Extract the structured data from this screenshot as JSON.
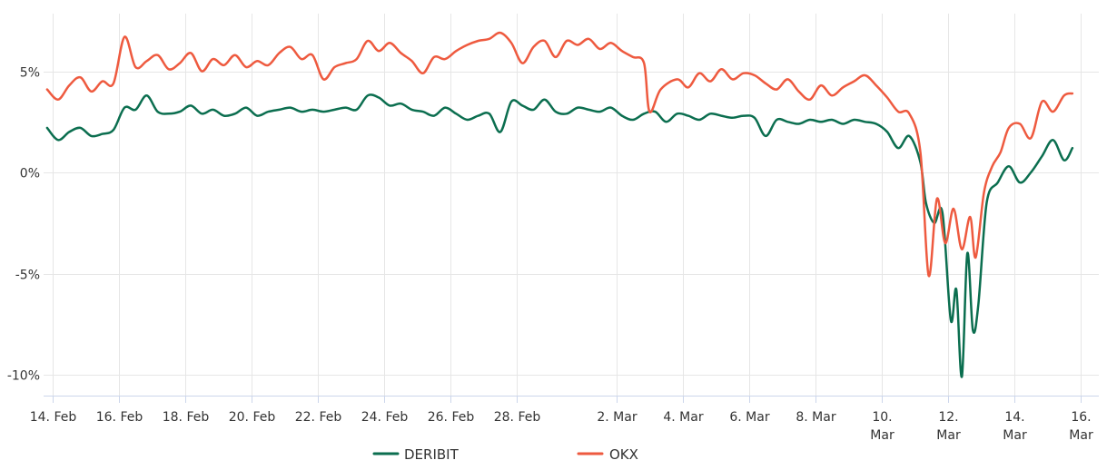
{
  "chart_data": {
    "type": "line",
    "title": "",
    "xlabel": "",
    "ylabel": "",
    "x_range": [
      "2020-02-14",
      "2020-03-16"
    ],
    "ylim": [
      -11,
      7.5
    ],
    "grid": true,
    "legend_placement": "bottom-center",
    "y_ticks": [
      {
        "value": 5,
        "label": "5%"
      },
      {
        "value": 0,
        "label": "0%"
      },
      {
        "value": -5,
        "label": "-5%"
      },
      {
        "value": -10,
        "label": "-10%"
      }
    ],
    "x_ticks": [
      {
        "date": "2020-02-14",
        "lines": [
          "14. Feb"
        ]
      },
      {
        "date": "2020-02-16",
        "lines": [
          "16. Feb"
        ]
      },
      {
        "date": "2020-02-18",
        "lines": [
          "18. Feb"
        ]
      },
      {
        "date": "2020-02-20",
        "lines": [
          "20. Feb"
        ]
      },
      {
        "date": "2020-02-22",
        "lines": [
          "22. Feb"
        ]
      },
      {
        "date": "2020-02-24",
        "lines": [
          "24. Feb"
        ]
      },
      {
        "date": "2020-02-26",
        "lines": [
          "26. Feb"
        ]
      },
      {
        "date": "2020-02-28",
        "lines": [
          "28. Feb"
        ]
      },
      {
        "date": "2020-03-02",
        "lines": [
          "2. Mar"
        ]
      },
      {
        "date": "2020-03-04",
        "lines": [
          "4. Mar"
        ]
      },
      {
        "date": "2020-03-06",
        "lines": [
          "6. Mar"
        ]
      },
      {
        "date": "2020-03-08",
        "lines": [
          "8. Mar"
        ]
      },
      {
        "date": "2020-03-10",
        "lines": [
          "10.",
          "Mar"
        ]
      },
      {
        "date": "2020-03-12",
        "lines": [
          "12.",
          "Mar"
        ]
      },
      {
        "date": "2020-03-14",
        "lines": [
          "14.",
          "Mar"
        ]
      },
      {
        "date": "2020-03-16",
        "lines": [
          "16.",
          "Mar"
        ]
      }
    ],
    "series": [
      {
        "name": "DERIBIT",
        "color": "#0b6e4f",
        "points": [
          [
            "2020-02-13 20:00",
            2.2
          ],
          [
            "2020-02-14 04:00",
            1.6
          ],
          [
            "2020-02-14 12:00",
            2.0
          ],
          [
            "2020-02-14 20:00",
            2.2
          ],
          [
            "2020-02-15 04:00",
            1.8
          ],
          [
            "2020-02-15 12:00",
            1.9
          ],
          [
            "2020-02-15 20:00",
            2.1
          ],
          [
            "2020-02-16 04:00",
            3.2
          ],
          [
            "2020-02-16 12:00",
            3.1
          ],
          [
            "2020-02-16 20:00",
            3.8
          ],
          [
            "2020-02-17 04:00",
            3.0
          ],
          [
            "2020-02-17 12:00",
            2.9
          ],
          [
            "2020-02-17 20:00",
            3.0
          ],
          [
            "2020-02-18 04:00",
            3.3
          ],
          [
            "2020-02-18 12:00",
            2.9
          ],
          [
            "2020-02-18 20:00",
            3.1
          ],
          [
            "2020-02-19 04:00",
            2.8
          ],
          [
            "2020-02-19 12:00",
            2.9
          ],
          [
            "2020-02-19 20:00",
            3.2
          ],
          [
            "2020-02-20 04:00",
            2.8
          ],
          [
            "2020-02-20 12:00",
            3.0
          ],
          [
            "2020-02-20 20:00",
            3.1
          ],
          [
            "2020-02-21 04:00",
            3.2
          ],
          [
            "2020-02-21 12:00",
            3.0
          ],
          [
            "2020-02-21 20:00",
            3.1
          ],
          [
            "2020-02-22 04:00",
            3.0
          ],
          [
            "2020-02-22 12:00",
            3.1
          ],
          [
            "2020-02-22 20:00",
            3.2
          ],
          [
            "2020-02-23 04:00",
            3.1
          ],
          [
            "2020-02-23 12:00",
            3.8
          ],
          [
            "2020-02-23 20:00",
            3.7
          ],
          [
            "2020-02-24 04:00",
            3.3
          ],
          [
            "2020-02-24 12:00",
            3.4
          ],
          [
            "2020-02-24 20:00",
            3.1
          ],
          [
            "2020-02-25 04:00",
            3.0
          ],
          [
            "2020-02-25 12:00",
            2.8
          ],
          [
            "2020-02-25 20:00",
            3.2
          ],
          [
            "2020-02-26 04:00",
            2.9
          ],
          [
            "2020-02-26 12:00",
            2.6
          ],
          [
            "2020-02-26 20:00",
            2.8
          ],
          [
            "2020-02-27 04:00",
            2.9
          ],
          [
            "2020-02-27 12:00",
            2.0
          ],
          [
            "2020-02-27 20:00",
            3.5
          ],
          [
            "2020-02-28 04:00",
            3.3
          ],
          [
            "2020-02-28 12:00",
            3.1
          ],
          [
            "2020-02-28 20:00",
            3.6
          ],
          [
            "2020-02-29 04:00",
            3.0
          ],
          [
            "2020-02-29 12:00",
            2.9
          ],
          [
            "2020-02-29 20:00",
            3.2
          ],
          [
            "2020-03-01 04:00",
            3.1
          ],
          [
            "2020-03-01 12:00",
            3.0
          ],
          [
            "2020-03-01 20:00",
            3.2
          ],
          [
            "2020-03-02 04:00",
            2.8
          ],
          [
            "2020-03-02 12:00",
            2.6
          ],
          [
            "2020-03-02 20:00",
            2.9
          ],
          [
            "2020-03-03 04:00",
            3.0
          ],
          [
            "2020-03-03 12:00",
            2.5
          ],
          [
            "2020-03-03 20:00",
            2.9
          ],
          [
            "2020-03-04 04:00",
            2.8
          ],
          [
            "2020-03-04 12:00",
            2.6
          ],
          [
            "2020-03-04 20:00",
            2.9
          ],
          [
            "2020-03-05 04:00",
            2.8
          ],
          [
            "2020-03-05 12:00",
            2.7
          ],
          [
            "2020-03-05 20:00",
            2.8
          ],
          [
            "2020-03-06 04:00",
            2.7
          ],
          [
            "2020-03-06 12:00",
            1.8
          ],
          [
            "2020-03-06 20:00",
            2.6
          ],
          [
            "2020-03-07 04:00",
            2.5
          ],
          [
            "2020-03-07 12:00",
            2.4
          ],
          [
            "2020-03-07 20:00",
            2.6
          ],
          [
            "2020-03-08 04:00",
            2.5
          ],
          [
            "2020-03-08 12:00",
            2.6
          ],
          [
            "2020-03-08 20:00",
            2.4
          ],
          [
            "2020-03-09 04:00",
            2.6
          ],
          [
            "2020-03-09 12:00",
            2.5
          ],
          [
            "2020-03-09 20:00",
            2.4
          ],
          [
            "2020-03-10 04:00",
            2.0
          ],
          [
            "2020-03-10 12:00",
            1.2
          ],
          [
            "2020-03-10 20:00",
            1.8
          ],
          [
            "2020-03-11 04:00",
            0.5
          ],
          [
            "2020-03-11 08:00",
            -1.5
          ],
          [
            "2020-03-11 14:00",
            -2.5
          ],
          [
            "2020-03-11 20:00",
            -2.0
          ],
          [
            "2020-03-12 02:00",
            -7.3
          ],
          [
            "2020-03-12 06:00",
            -5.8
          ],
          [
            "2020-03-12 10:00",
            -10.1
          ],
          [
            "2020-03-12 14:00",
            -4.0
          ],
          [
            "2020-03-12 18:00",
            -7.8
          ],
          [
            "2020-03-12 22:00",
            -6.5
          ],
          [
            "2020-03-13 04:00",
            -1.5
          ],
          [
            "2020-03-13 12:00",
            -0.5
          ],
          [
            "2020-03-13 20:00",
            0.3
          ],
          [
            "2020-03-14 04:00",
            -0.5
          ],
          [
            "2020-03-14 12:00",
            0.0
          ],
          [
            "2020-03-14 20:00",
            0.8
          ],
          [
            "2020-03-15 04:00",
            1.6
          ],
          [
            "2020-03-15 12:00",
            0.6
          ],
          [
            "2020-03-15 18:00",
            1.2
          ]
        ]
      },
      {
        "name": "OKX",
        "color": "#ee5a3f",
        "points": [
          [
            "2020-02-13 20:00",
            4.1
          ],
          [
            "2020-02-14 04:00",
            3.6
          ],
          [
            "2020-02-14 12:00",
            4.3
          ],
          [
            "2020-02-14 20:00",
            4.7
          ],
          [
            "2020-02-15 04:00",
            4.0
          ],
          [
            "2020-02-15 12:00",
            4.5
          ],
          [
            "2020-02-15 20:00",
            4.4
          ],
          [
            "2020-02-16 04:00",
            6.7
          ],
          [
            "2020-02-16 12:00",
            5.2
          ],
          [
            "2020-02-16 20:00",
            5.5
          ],
          [
            "2020-02-17 04:00",
            5.8
          ],
          [
            "2020-02-17 12:00",
            5.1
          ],
          [
            "2020-02-17 20:00",
            5.4
          ],
          [
            "2020-02-18 04:00",
            5.9
          ],
          [
            "2020-02-18 12:00",
            5.0
          ],
          [
            "2020-02-18 20:00",
            5.6
          ],
          [
            "2020-02-19 04:00",
            5.3
          ],
          [
            "2020-02-19 12:00",
            5.8
          ],
          [
            "2020-02-19 20:00",
            5.2
          ],
          [
            "2020-02-20 04:00",
            5.5
          ],
          [
            "2020-02-20 12:00",
            5.3
          ],
          [
            "2020-02-20 20:00",
            5.9
          ],
          [
            "2020-02-21 04:00",
            6.2
          ],
          [
            "2020-02-21 12:00",
            5.6
          ],
          [
            "2020-02-21 20:00",
            5.8
          ],
          [
            "2020-02-22 04:00",
            4.6
          ],
          [
            "2020-02-22 12:00",
            5.2
          ],
          [
            "2020-02-22 20:00",
            5.4
          ],
          [
            "2020-02-23 04:00",
            5.6
          ],
          [
            "2020-02-23 12:00",
            6.5
          ],
          [
            "2020-02-23 20:00",
            6.0
          ],
          [
            "2020-02-24 04:00",
            6.4
          ],
          [
            "2020-02-24 12:00",
            5.9
          ],
          [
            "2020-02-24 20:00",
            5.5
          ],
          [
            "2020-02-25 04:00",
            4.9
          ],
          [
            "2020-02-25 12:00",
            5.7
          ],
          [
            "2020-02-25 20:00",
            5.6
          ],
          [
            "2020-02-26 04:00",
            6.0
          ],
          [
            "2020-02-26 12:00",
            6.3
          ],
          [
            "2020-02-26 20:00",
            6.5
          ],
          [
            "2020-02-27 04:00",
            6.6
          ],
          [
            "2020-02-27 12:00",
            6.9
          ],
          [
            "2020-02-27 20:00",
            6.4
          ],
          [
            "2020-02-28 04:00",
            5.4
          ],
          [
            "2020-02-28 12:00",
            6.2
          ],
          [
            "2020-02-28 20:00",
            6.5
          ],
          [
            "2020-02-29 04:00",
            5.7
          ],
          [
            "2020-02-29 12:00",
            6.5
          ],
          [
            "2020-02-29 20:00",
            6.3
          ],
          [
            "2020-03-01 04:00",
            6.6
          ],
          [
            "2020-03-01 12:00",
            6.1
          ],
          [
            "2020-03-01 20:00",
            6.4
          ],
          [
            "2020-03-02 04:00",
            6.0
          ],
          [
            "2020-03-02 12:00",
            5.7
          ],
          [
            "2020-03-02 20:00",
            5.4
          ],
          [
            "2020-03-03 00:00",
            3.0
          ],
          [
            "2020-03-03 08:00",
            4.1
          ],
          [
            "2020-03-03 20:00",
            4.6
          ],
          [
            "2020-03-04 04:00",
            4.2
          ],
          [
            "2020-03-04 12:00",
            4.9
          ],
          [
            "2020-03-04 20:00",
            4.5
          ],
          [
            "2020-03-05 04:00",
            5.1
          ],
          [
            "2020-03-05 12:00",
            4.6
          ],
          [
            "2020-03-05 20:00",
            4.9
          ],
          [
            "2020-03-06 04:00",
            4.8
          ],
          [
            "2020-03-06 12:00",
            4.4
          ],
          [
            "2020-03-06 20:00",
            4.1
          ],
          [
            "2020-03-07 04:00",
            4.6
          ],
          [
            "2020-03-07 12:00",
            4.0
          ],
          [
            "2020-03-07 20:00",
            3.6
          ],
          [
            "2020-03-08 04:00",
            4.3
          ],
          [
            "2020-03-08 12:00",
            3.8
          ],
          [
            "2020-03-08 20:00",
            4.2
          ],
          [
            "2020-03-09 04:00",
            4.5
          ],
          [
            "2020-03-09 12:00",
            4.8
          ],
          [
            "2020-03-09 20:00",
            4.3
          ],
          [
            "2020-03-10 04:00",
            3.7
          ],
          [
            "2020-03-10 12:00",
            3.0
          ],
          [
            "2020-03-10 20:00",
            2.9
          ],
          [
            "2020-03-11 04:00",
            1.0
          ],
          [
            "2020-03-11 10:00",
            -5.1
          ],
          [
            "2020-03-11 16:00",
            -1.3
          ],
          [
            "2020-03-11 22:00",
            -3.5
          ],
          [
            "2020-03-12 04:00",
            -1.8
          ],
          [
            "2020-03-12 10:00",
            -3.8
          ],
          [
            "2020-03-12 16:00",
            -2.2
          ],
          [
            "2020-03-12 20:00",
            -4.2
          ],
          [
            "2020-03-13 02:00",
            -1.0
          ],
          [
            "2020-03-13 08:00",
            0.3
          ],
          [
            "2020-03-13 14:00",
            1.0
          ],
          [
            "2020-03-13 20:00",
            2.2
          ],
          [
            "2020-03-14 04:00",
            2.4
          ],
          [
            "2020-03-14 12:00",
            1.7
          ],
          [
            "2020-03-14 20:00",
            3.5
          ],
          [
            "2020-03-15 04:00",
            3.0
          ],
          [
            "2020-03-15 12:00",
            3.8
          ],
          [
            "2020-03-15 18:00",
            3.9
          ]
        ]
      }
    ]
  }
}
